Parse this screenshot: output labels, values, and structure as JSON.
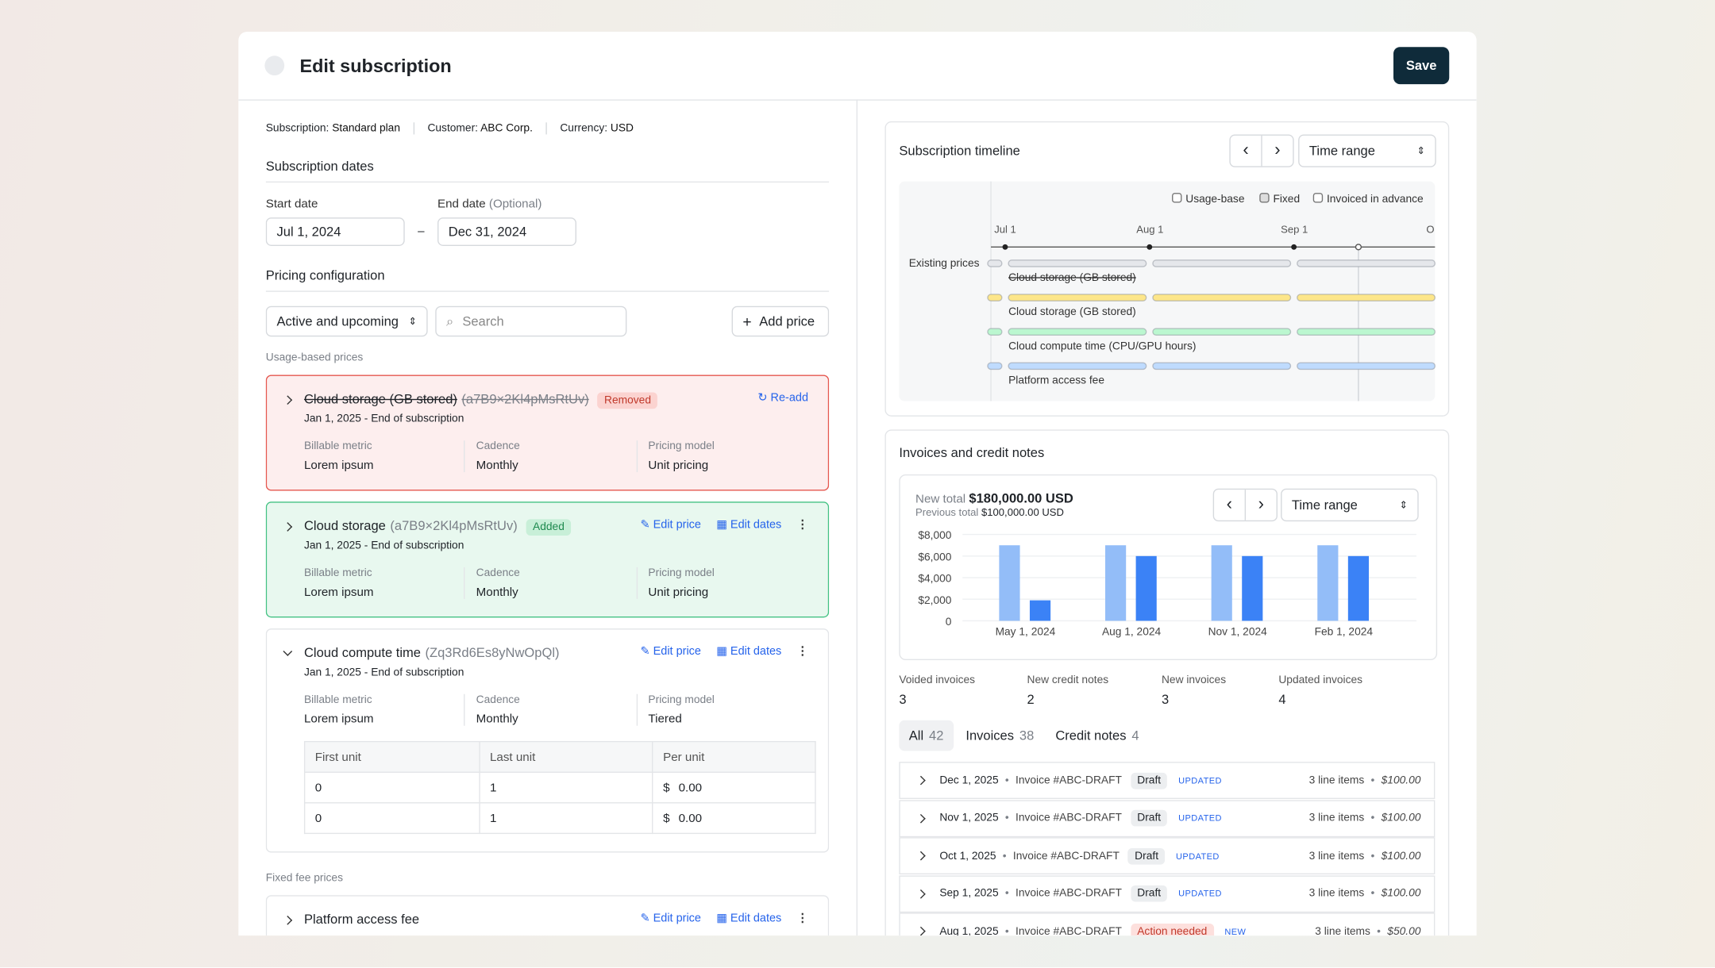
{
  "header": {
    "title": "Edit subscription",
    "save": "Save"
  },
  "meta": [
    {
      "label": "Subscription:",
      "value": "Standard plan"
    },
    {
      "label": "Customer:",
      "value": "ABC Corp."
    },
    {
      "label": "Currency:",
      "value": "USD"
    }
  ],
  "dates": {
    "heading": "Subscription dates",
    "start_label": "Start date",
    "start": "Jul 1, 2024",
    "separator": "–",
    "end_label": "End date",
    "end_optional": "(Optional)",
    "end": "Dec 31, 2024"
  },
  "pricing": {
    "heading": "Pricing configuration",
    "filter": "Active and upcoming",
    "search": "Search",
    "add": "Add price",
    "usage_heading": "Usage-based prices",
    "fixed_heading": "Fixed fee prices"
  },
  "prices": [
    {
      "name": "Cloud storage (GB stored)",
      "id": "(a7B9×2Kl4pMsRtUv)",
      "badge": "Removed",
      "actions": [
        "Re-add"
      ],
      "dates": "Jan 1, 2025 - End of subscription",
      "fields": [
        {
          "label": "Billable metric",
          "value": "Lorem ipsum"
        },
        {
          "label": "Cadence",
          "value": "Monthly"
        },
        {
          "label": "Pricing model",
          "value": "Unit pricing"
        }
      ]
    },
    {
      "name": "Cloud storage",
      "id": "(a7B9×2Kl4pMsRtUv)",
      "badge": "Added",
      "actions": [
        "Edit price",
        "Edit dates"
      ],
      "dates": "Jan 1, 2025 - End of subscription",
      "fields": [
        {
          "label": "Billable metric",
          "value": "Lorem ipsum"
        },
        {
          "label": "Cadence",
          "value": "Monthly"
        },
        {
          "label": "Pricing model",
          "value": "Unit pricing"
        }
      ]
    },
    {
      "name": "Cloud compute time",
      "id": "(Zq3Rd6Es8yNwOpQl)",
      "actions": [
        "Edit price",
        "Edit dates"
      ],
      "dates": "Jan 1, 2025 - End of subscription",
      "fields": [
        {
          "label": "Billable metric",
          "value": "Lorem ipsum"
        },
        {
          "label": "Cadence",
          "value": "Monthly"
        },
        {
          "label": "Pricing model",
          "value": "Tiered"
        }
      ],
      "tiers": {
        "headers": [
          "First unit",
          "Last unit",
          "Per unit"
        ],
        "rows": [
          [
            "0",
            "1",
            "$",
            "0.00"
          ],
          [
            "0",
            "1",
            "$",
            "0.00"
          ]
        ]
      }
    },
    {
      "name": "Platform access fee",
      "actions": [
        "Edit price",
        "Edit dates"
      ]
    }
  ],
  "timeline": {
    "title": "Subscription timeline",
    "range": "Time range",
    "legend": [
      "Usage-base",
      "Fixed",
      "Invoiced in advance"
    ],
    "axis": [
      "Jul 1",
      "Aug 1",
      "Sep 1",
      "O"
    ],
    "row_label": "Existing prices",
    "tracks": [
      {
        "label": "Cloud storage (GB stored)",
        "color": "#e5e7eb"
      },
      {
        "label": "Cloud storage (GB stored)",
        "color": "#fde68a"
      },
      {
        "label": "Cloud compute time (CPU/GPU hours)",
        "color": "#bbf7d0"
      },
      {
        "label": "Platform access fee",
        "color": "#bfdbfe"
      }
    ]
  },
  "invoices": {
    "title": "Invoices and credit notes",
    "new_total_label": "New total",
    "new_total": "$180,000.00 USD",
    "prev_label": "Previous total",
    "prev_total": "$100,000.00 USD",
    "range": "Time range",
    "chart": {
      "type": "bar",
      "categories": [
        "May 1, 2024",
        "Aug 1, 2024",
        "Nov 1, 2024",
        "Feb 1, 2024"
      ],
      "series": [
        {
          "color": "#93bdf8",
          "values": [
            7000,
            7000,
            7000,
            7000
          ]
        },
        {
          "color": "#3b82f6",
          "values": [
            1900,
            6000,
            6000,
            6000
          ]
        }
      ],
      "ylim": [
        0,
        8000
      ],
      "yticks": [
        0,
        {
          "value": 2000,
          "label": "$2,000"
        },
        {
          "value": 4000,
          "label": "$4,000"
        },
        {
          "value": 6000,
          "label": "$6,000"
        },
        {
          "value": 8000,
          "label": "$8,000"
        }
      ],
      "grid": true
    },
    "stats": [
      {
        "label": "Voided invoices",
        "value": 3
      },
      {
        "label": "New credit notes",
        "value": 2
      },
      {
        "label": "New invoices",
        "value": 3
      },
      {
        "label": "Updated invoices",
        "value": 4
      }
    ],
    "tabs": [
      {
        "label": "All",
        "count": 42
      },
      {
        "label": "Invoices",
        "count": 38
      },
      {
        "label": "Credit notes",
        "count": 4
      }
    ],
    "rows": [
      {
        "date": "Dec 1, 2025",
        "number": "Invoice #ABC-DRAFT",
        "status": "Draft",
        "tag": "UPDATED",
        "items": "3 line items",
        "amount": "$100.00"
      },
      {
        "date": "Nov 1, 2025",
        "number": "Invoice #ABC-DRAFT",
        "status": "Draft",
        "tag": "UPDATED",
        "items": "3 line items",
        "amount": "$100.00"
      },
      {
        "date": "Oct 1, 2025",
        "number": "Invoice #ABC-DRAFT",
        "status": "Draft",
        "tag": "UPDATED",
        "items": "3 line items",
        "amount": "$100.00"
      },
      {
        "date": "Sep 1, 2025",
        "number": "Invoice #ABC-DRAFT",
        "status": "Draft",
        "tag": "UPDATED",
        "items": "3 line items",
        "amount": "$100.00"
      },
      {
        "date": "Aug 1, 2025",
        "number": "Invoice #ABC-DRAFT",
        "status": "Action needed",
        "tag": "NEW",
        "items": "3 line items",
        "amount": "$50.00"
      }
    ]
  }
}
